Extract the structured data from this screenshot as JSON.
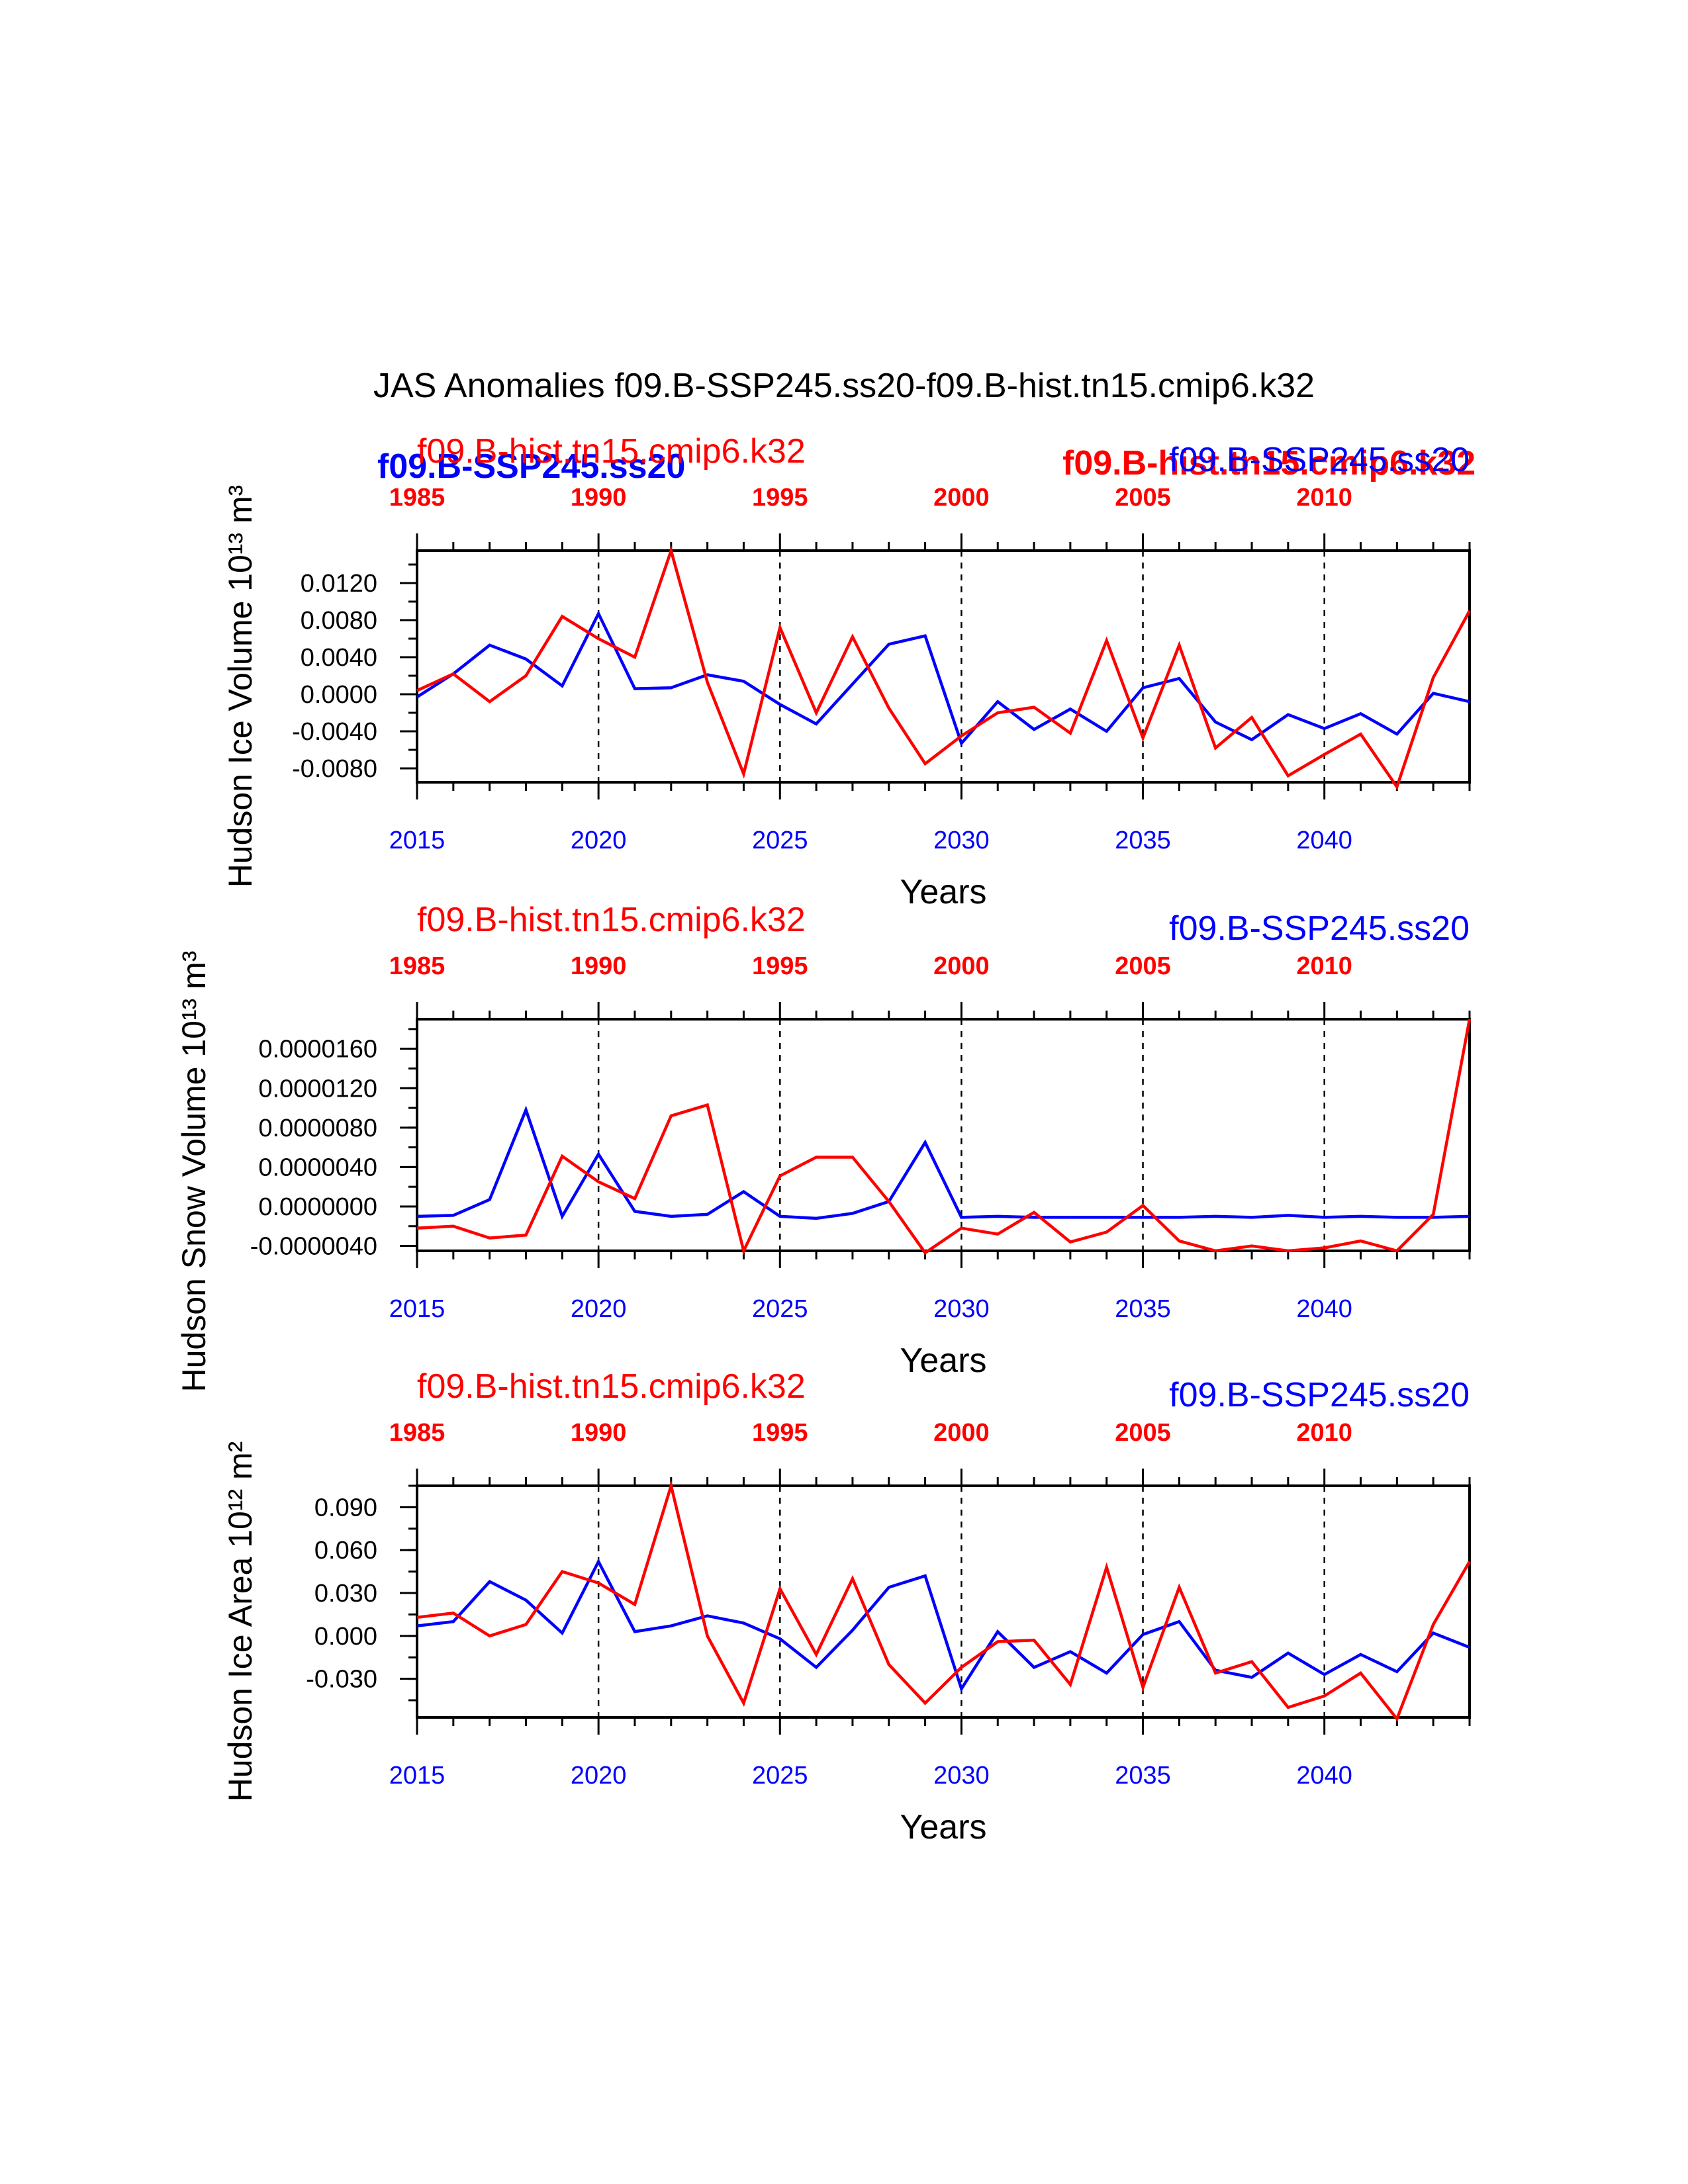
{
  "figure": {
    "title": "JAS Anomalies f09.B-SSP245.ss20-f09.B-hist.tn15.cmip6.k32",
    "legend_bold": {
      "blue": "f09.B-SSP245.ss20",
      "red": "f09.B-hist.tn15.cmip6.k32"
    },
    "colors": {
      "ssp": "#0000ff",
      "hist": "#ff0000",
      "axis": "#000000"
    }
  },
  "chart_data": [
    {
      "type": "line",
      "ylabel": "Hudson Ice Volume 10¹³ m³",
      "xlabel": "Years",
      "top_left_label": "f09.B-hist.tn15.cmip6.k32",
      "top_right_label": "f09.B-SSP245.ss20",
      "ylim": [
        -0.0095,
        0.0155
      ],
      "yticks": [
        "0.0120",
        "0.0080",
        "0.0040",
        "0.0000",
        "-0.0040",
        "-0.0080"
      ],
      "yticks_values": [
        0.012,
        0.008,
        0.004,
        0.0,
        -0.004,
        -0.008
      ],
      "yminor_step": 0.002,
      "bottom_axis": {
        "range": [
          2015,
          2044
        ],
        "ticks": [
          "2015",
          "2020",
          "2025",
          "2030",
          "2035",
          "2040"
        ],
        "color": "#0000ff"
      },
      "top_axis": {
        "range": [
          1985,
          2014
        ],
        "ticks": [
          "1985",
          "1990",
          "1995",
          "2000",
          "2005",
          "2010"
        ],
        "color": "#ff0000"
      },
      "series": [
        {
          "name": "f09.B-SSP245.ss20",
          "color": "#0000ff",
          "x": [
            2015,
            2016,
            2017,
            2018,
            2019,
            2020,
            2021,
            2022,
            2023,
            2024,
            2025,
            2026,
            2027,
            2028,
            2029,
            2030,
            2031,
            2032,
            2033,
            2034,
            2035,
            2036,
            2037,
            2038,
            2039,
            2040,
            2041,
            2042,
            2043,
            2044
          ],
          "values": [
            -0.0003,
            0.0022,
            0.0053,
            0.0038,
            0.0009,
            0.0087,
            0.0006,
            0.0007,
            0.0021,
            0.0014,
            -0.0011,
            -0.0032,
            0.0011,
            0.0054,
            0.0063,
            -0.0053,
            -0.0008,
            -0.0038,
            -0.0016,
            -0.004,
            0.0007,
            0.0017,
            -0.003,
            -0.0049,
            -0.0022,
            -0.0037,
            -0.0021,
            -0.0043,
            0.0001,
            -0.0008
          ]
        },
        {
          "name": "f09.B-hist.tn15.cmip6.k32",
          "color": "#ff0000",
          "x": [
            2015,
            2016,
            2017,
            2018,
            2019,
            2020,
            2021,
            2022,
            2023,
            2024,
            2025,
            2026,
            2027,
            2028,
            2029,
            2030,
            2031,
            2032,
            2033,
            2034,
            2035,
            2036,
            2037,
            2038,
            2039,
            2040,
            2041,
            2042,
            2043,
            2044
          ],
          "values": [
            0.0004,
            0.0022,
            -0.0008,
            0.002,
            0.0084,
            0.006,
            0.004,
            0.0155,
            0.0013,
            -0.0086,
            0.0072,
            -0.002,
            0.0062,
            -0.0015,
            -0.0075,
            -0.0045,
            -0.002,
            -0.0014,
            -0.0042,
            0.0058,
            -0.0047,
            0.0053,
            -0.0058,
            -0.0025,
            -0.0088,
            -0.0065,
            -0.0043,
            -0.01,
            0.0018,
            0.009
          ]
        }
      ]
    },
    {
      "type": "line",
      "ylabel": "Hudson Snow Volume 10¹³ m³",
      "xlabel": "Years",
      "top_left_label": "f09.B-hist.tn15.cmip6.k32",
      "top_right_label": "f09.B-SSP245.ss20",
      "ylim": [
        -4.5e-06,
        1.9e-05
      ],
      "yticks": [
        "0.0000160",
        "0.0000120",
        "0.0000080",
        "0.0000040",
        "0.0000000",
        "-0.0000040"
      ],
      "yticks_values": [
        1.6e-05,
        1.2e-05,
        8e-06,
        4e-06,
        0.0,
        -4e-06
      ],
      "yminor_step": 2e-06,
      "bottom_axis": {
        "range": [
          2015,
          2044
        ],
        "ticks": [
          "2015",
          "2020",
          "2025",
          "2030",
          "2035",
          "2040"
        ],
        "color": "#0000ff"
      },
      "top_axis": {
        "range": [
          1985,
          2014
        ],
        "ticks": [
          "1985",
          "1990",
          "1995",
          "2000",
          "2005",
          "2010"
        ],
        "color": "#ff0000"
      },
      "series": [
        {
          "name": "f09.B-SSP245.ss20",
          "color": "#0000ff",
          "x": [
            2015,
            2016,
            2017,
            2018,
            2019,
            2020,
            2021,
            2022,
            2023,
            2024,
            2025,
            2026,
            2027,
            2028,
            2029,
            2030,
            2031,
            2032,
            2033,
            2034,
            2035,
            2036,
            2037,
            2038,
            2039,
            2040,
            2041,
            2042,
            2043,
            2044
          ],
          "values": [
            -1e-06,
            -9e-07,
            7e-07,
            9.8e-06,
            -1e-06,
            5.3e-06,
            -5e-07,
            -1e-06,
            -8e-07,
            1.5e-06,
            -1e-06,
            -1.2e-06,
            -7e-07,
            5e-07,
            6.5e-06,
            -1.1e-06,
            -1e-06,
            -1.1e-06,
            -1.1e-06,
            -1.1e-06,
            -1.1e-06,
            -1.1e-06,
            -1e-06,
            -1.1e-06,
            -9e-07,
            -1.1e-06,
            -1e-06,
            -1.1e-06,
            -1.1e-06,
            -1e-06
          ]
        },
        {
          "name": "f09.B-hist.tn15.cmip6.k32",
          "color": "#ff0000",
          "x": [
            2015,
            2016,
            2017,
            2018,
            2019,
            2020,
            2021,
            2022,
            2023,
            2024,
            2025,
            2026,
            2027,
            2028,
            2029,
            2030,
            2031,
            2032,
            2033,
            2034,
            2035,
            2036,
            2037,
            2038,
            2039,
            2040,
            2041,
            2042,
            2043,
            2044
          ],
          "values": [
            -2.2e-06,
            -2e-06,
            -3.2e-06,
            -2.9e-06,
            5.1e-06,
            2.5e-06,
            8e-07,
            9.2e-06,
            1.03e-05,
            -4.5e-06,
            3.1e-06,
            5e-06,
            5e-06,
            5e-07,
            -4.7e-06,
            -2.2e-06,
            -2.8e-06,
            -6e-07,
            -3.6e-06,
            -2.6e-06,
            1e-07,
            -3.5e-06,
            -4.5e-06,
            -4e-06,
            -4.5e-06,
            -4.2e-06,
            -3.5e-06,
            -4.5e-06,
            -8e-07,
            1.9e-05
          ]
        }
      ]
    },
    {
      "type": "line",
      "ylabel": "Hudson Ice Area 10¹² m²",
      "xlabel": "Years",
      "top_left_label": "f09.B-hist.tn15.cmip6.k32",
      "top_right_label": "f09.B-SSP245.ss20",
      "ylim": [
        -0.057,
        0.105
      ],
      "yticks": [
        "0.090",
        "0.060",
        "0.030",
        "0.000",
        "-0.030"
      ],
      "yticks_values": [
        0.09,
        0.06,
        0.03,
        0.0,
        -0.03
      ],
      "yminor_step": 0.015,
      "bottom_axis": {
        "range": [
          2015,
          2044
        ],
        "ticks": [
          "2015",
          "2020",
          "2025",
          "2030",
          "2035",
          "2040"
        ],
        "color": "#0000ff"
      },
      "top_axis": {
        "range": [
          1985,
          2014
        ],
        "ticks": [
          "1985",
          "1990",
          "1995",
          "2000",
          "2005",
          "2010"
        ],
        "color": "#ff0000"
      },
      "series": [
        {
          "name": "f09.B-SSP245.ss20",
          "color": "#0000ff",
          "x": [
            2015,
            2016,
            2017,
            2018,
            2019,
            2020,
            2021,
            2022,
            2023,
            2024,
            2025,
            2026,
            2027,
            2028,
            2029,
            2030,
            2031,
            2032,
            2033,
            2034,
            2035,
            2036,
            2037,
            2038,
            2039,
            2040,
            2041,
            2042,
            2043,
            2044
          ],
          "values": [
            0.007,
            0.01,
            0.038,
            0.025,
            0.002,
            0.052,
            0.003,
            0.007,
            0.014,
            0.009,
            -0.002,
            -0.022,
            0.004,
            0.034,
            0.042,
            -0.037,
            0.003,
            -0.022,
            -0.011,
            -0.026,
            0.001,
            0.01,
            -0.024,
            -0.029,
            -0.012,
            -0.027,
            -0.013,
            -0.025,
            0.002,
            -0.008
          ]
        },
        {
          "name": "f09.B-hist.tn15.cmip6.k32",
          "color": "#ff0000",
          "x": [
            2015,
            2016,
            2017,
            2018,
            2019,
            2020,
            2021,
            2022,
            2023,
            2024,
            2025,
            2026,
            2027,
            2028,
            2029,
            2030,
            2031,
            2032,
            2033,
            2034,
            2035,
            2036,
            2037,
            2038,
            2039,
            2040,
            2041,
            2042,
            2043,
            2044
          ],
          "values": [
            0.013,
            0.016,
            0.0,
            0.008,
            0.045,
            0.037,
            0.022,
            0.105,
            0.0,
            -0.047,
            0.033,
            -0.013,
            0.04,
            -0.02,
            -0.047,
            -0.022,
            -0.004,
            -0.003,
            -0.034,
            0.048,
            -0.036,
            0.034,
            -0.026,
            -0.018,
            -0.05,
            -0.042,
            -0.026,
            -0.058,
            0.008,
            0.052
          ]
        }
      ]
    }
  ]
}
